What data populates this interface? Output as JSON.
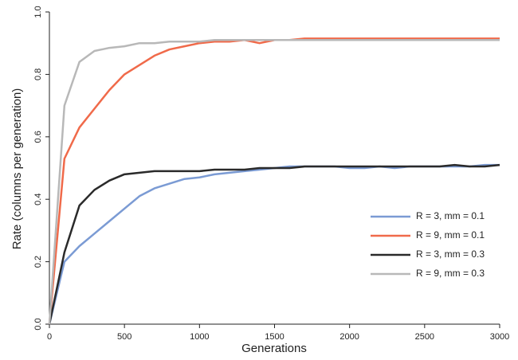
{
  "chart_data": {
    "type": "line",
    "x_label": "Generations",
    "y_label": "Rate (columns per generation)",
    "x": [
      0,
      100,
      200,
      300,
      400,
      500,
      600,
      700,
      800,
      900,
      1000,
      1100,
      1200,
      1300,
      1400,
      1500,
      1600,
      1700,
      1800,
      1900,
      2000,
      2100,
      2200,
      2300,
      2400,
      2500,
      2600,
      2700,
      2800,
      2900,
      3000
    ],
    "series": [
      {
        "name": "R = 3, mm = 0.1",
        "color": "#7b9bd4",
        "values": [
          0,
          0.2,
          0.25,
          0.29,
          0.33,
          0.37,
          0.41,
          0.435,
          0.45,
          0.465,
          0.47,
          0.48,
          0.485,
          0.49,
          0.495,
          0.5,
          0.505,
          0.505,
          0.505,
          0.505,
          0.5,
          0.5,
          0.505,
          0.5,
          0.505,
          0.505,
          0.505,
          0.505,
          0.505,
          0.51,
          0.51
        ]
      },
      {
        "name": "R = 9, mm = 0.1",
        "color": "#f06a4a",
        "values": [
          0,
          0.53,
          0.63,
          0.69,
          0.75,
          0.8,
          0.83,
          0.86,
          0.88,
          0.89,
          0.9,
          0.905,
          0.905,
          0.91,
          0.9,
          0.91,
          0.91,
          0.915,
          0.915,
          0.915,
          0.915,
          0.915,
          0.915,
          0.915,
          0.915,
          0.915,
          0.915,
          0.915,
          0.915,
          0.915,
          0.915
        ]
      },
      {
        "name": "R = 3, mm = 0.3",
        "color": "#2a2a2a",
        "values": [
          0,
          0.23,
          0.38,
          0.43,
          0.46,
          0.48,
          0.485,
          0.49,
          0.49,
          0.49,
          0.49,
          0.495,
          0.495,
          0.495,
          0.5,
          0.5,
          0.5,
          0.505,
          0.505,
          0.505,
          0.505,
          0.505,
          0.505,
          0.505,
          0.505,
          0.505,
          0.505,
          0.51,
          0.505,
          0.505,
          0.51
        ]
      },
      {
        "name": "R = 9, mm = 0.3",
        "color": "#b8b8b8",
        "values": [
          0,
          0.7,
          0.84,
          0.875,
          0.885,
          0.89,
          0.9,
          0.9,
          0.905,
          0.905,
          0.905,
          0.91,
          0.91,
          0.91,
          0.91,
          0.91,
          0.91,
          0.91,
          0.91,
          0.91,
          0.91,
          0.91,
          0.91,
          0.91,
          0.91,
          0.91,
          0.91,
          0.91,
          0.91,
          0.91,
          0.91
        ]
      }
    ],
    "xlim": [
      0,
      3000
    ],
    "xticks": [
      0,
      500,
      1000,
      1500,
      2000,
      2500,
      3000
    ],
    "ylim": [
      0,
      1
    ],
    "yticks": [
      {
        "value": 0,
        "label": "0.0"
      },
      0.2,
      0.4,
      0.6,
      0.8,
      {
        "value": 1,
        "label": "1.0"
      }
    ]
  }
}
